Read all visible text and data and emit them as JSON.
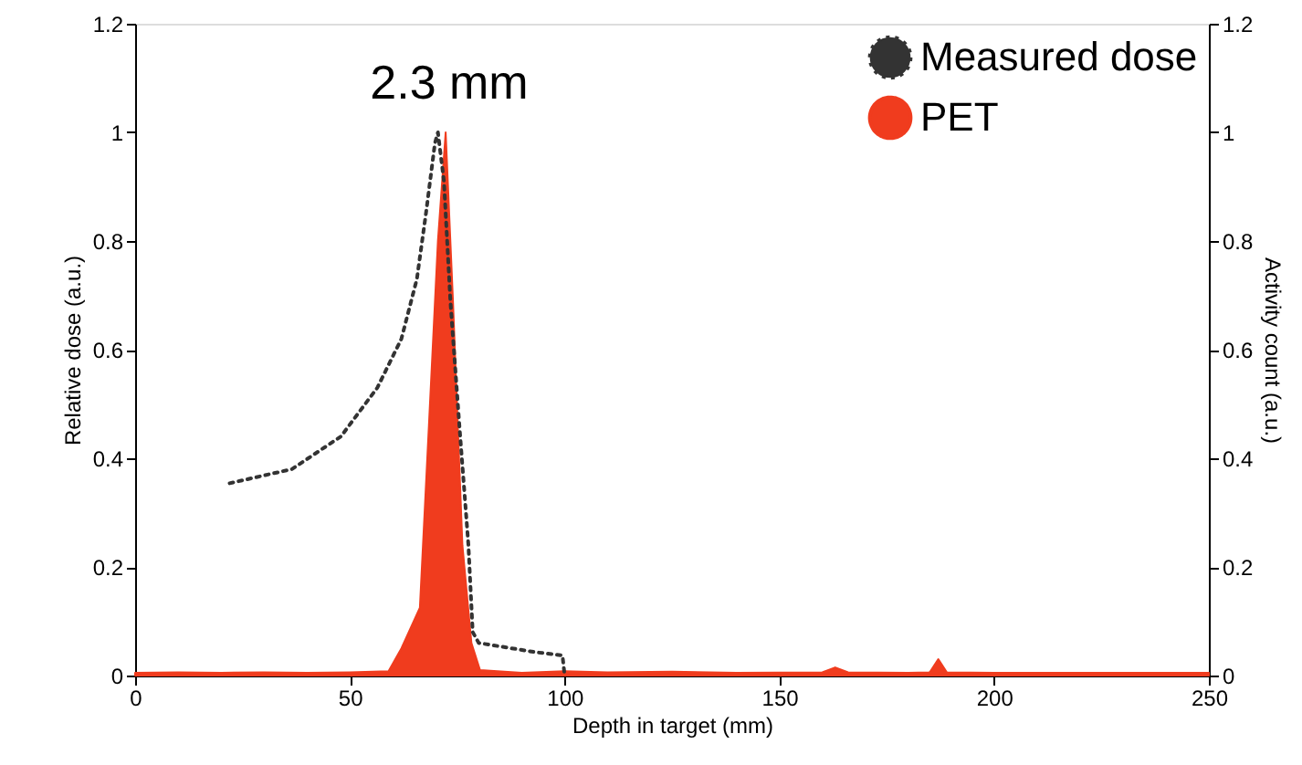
{
  "chart_data": {
    "type": "line",
    "xlabel": "Depth in target (mm)",
    "ylabel": "Relative dose (a.u.)",
    "y2label": "Activity count (a.u.)",
    "annotations": [
      "2.3 mm"
    ],
    "xlim": [
      0,
      250
    ],
    "xticks": [
      0,
      50,
      100,
      150,
      200,
      250
    ],
    "ylim": [
      0,
      1.2
    ],
    "yticks": [
      0,
      0.2,
      0.4,
      0.6,
      0.8,
      1,
      1.2
    ],
    "y2lim": [
      0,
      1.2
    ],
    "y2ticks": [
      0,
      0.2,
      0.4,
      0.6,
      0.8,
      1,
      1.2
    ],
    "grid": false,
    "legend": "top right",
    "series": [
      {
        "name": "Measured dose",
        "color": "#333333",
        "line_style": "dotted",
        "x": [
          22,
          36.5,
          47.9,
          56.4,
          62,
          65.6,
          67.7,
          69.8,
          70.5,
          71.9,
          73.4,
          75.5,
          77.6,
          78.6,
          80,
          93.2,
          99.5,
          100
        ],
        "values": [
          0.354,
          0.38,
          0.44,
          0.53,
          0.62,
          0.73,
          0.85,
          0.98,
          1.0,
          0.91,
          0.69,
          0.46,
          0.24,
          0.08,
          0.06,
          0.043,
          0.037,
          0
        ]
      },
      {
        "name": "PET",
        "type": "area",
        "axis": "y2",
        "color": "#f03c1e",
        "x": [
          0,
          10,
          20,
          30,
          40,
          50,
          59,
          62,
          66.3,
          68.4,
          70.5,
          72.3,
          74,
          76.2,
          78.3,
          80.3,
          90,
          100,
          110,
          125,
          140,
          160,
          163,
          166,
          180,
          185,
          187,
          189,
          200,
          220,
          250
        ],
        "values": [
          0.005,
          0.006,
          0.005,
          0.006,
          0.005,
          0.006,
          0.008,
          0.05,
          0.125,
          0.46,
          0.8,
          1.0,
          0.69,
          0.24,
          0.06,
          0.01,
          0.005,
          0.008,
          0.006,
          0.007,
          0.005,
          0.006,
          0.015,
          0.006,
          0.005,
          0.006,
          0.03,
          0.006,
          0.005,
          0.005,
          0.005
        ]
      }
    ]
  }
}
